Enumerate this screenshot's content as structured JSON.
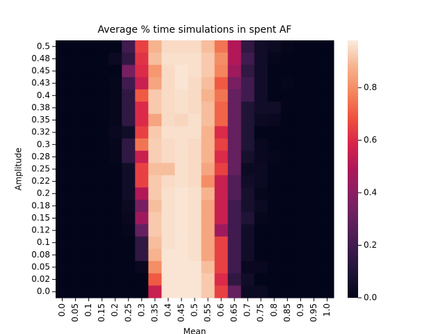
{
  "chart_data": {
    "type": "heatmap",
    "title": "Average % time simulations in spent AF",
    "x_label": "Mean",
    "y_label": "Amplitude",
    "x_categories": [
      "0.0",
      "0.05",
      "0.1",
      "0.15",
      "0.2",
      "0.25",
      "0.3",
      "0.35",
      "0.4",
      "0.45",
      "0.5",
      "0.55",
      "0.6",
      "0.65",
      "0.7",
      "0.75",
      "0.8",
      "0.85",
      "0.9",
      "0.95",
      "1.0"
    ],
    "y_categories": [
      "0.5",
      "0.48",
      "0.45",
      "0.43",
      "0.4",
      "0.38",
      "0.35",
      "0.32",
      "0.3",
      "0.28",
      "0.25",
      "0.22",
      "0.2",
      "0.18",
      "0.15",
      "0.12",
      "0.1",
      "0.08",
      "0.05",
      "0.02",
      "0.0"
    ],
    "values": [
      [
        0,
        0,
        0,
        0,
        0,
        0.2,
        0.65,
        0.88,
        0.95,
        0.95,
        0.95,
        0.9,
        0.75,
        0.5,
        0.15,
        0.05,
        0.03,
        0.01,
        0,
        0,
        0
      ],
      [
        0,
        0,
        0,
        0,
        0.03,
        0.15,
        0.62,
        0.9,
        0.96,
        0.96,
        0.96,
        0.92,
        0.8,
        0.5,
        0.2,
        0.05,
        0.01,
        0,
        0,
        0,
        0
      ],
      [
        0,
        0,
        0,
        0,
        0,
        0.35,
        0.6,
        0.82,
        0.95,
        0.97,
        0.96,
        0.92,
        0.78,
        0.45,
        0.15,
        0.05,
        0,
        0,
        0,
        0,
        0
      ],
      [
        0,
        0,
        0,
        0,
        0.01,
        0.2,
        0.55,
        0.85,
        0.95,
        0.97,
        0.95,
        0.9,
        0.7,
        0.35,
        0.2,
        0.05,
        0,
        0.01,
        0,
        0,
        0
      ],
      [
        0,
        0,
        0,
        0,
        0.01,
        0.15,
        0.7,
        0.92,
        0.95,
        0.96,
        0.95,
        0.88,
        0.75,
        0.3,
        0.2,
        0.05,
        0,
        0,
        0,
        0,
        0
      ],
      [
        0,
        0,
        0,
        0,
        0.01,
        0.15,
        0.6,
        0.92,
        0.95,
        0.96,
        0.95,
        0.9,
        0.72,
        0.3,
        0.1,
        0.05,
        0.05,
        0,
        0,
        0,
        0
      ],
      [
        0,
        0,
        0,
        0,
        0.01,
        0.15,
        0.6,
        0.85,
        0.95,
        0.94,
        0.96,
        0.9,
        0.72,
        0.3,
        0.1,
        0.03,
        0.02,
        0,
        0,
        0,
        0
      ],
      [
        0,
        0,
        0,
        0,
        0.02,
        0.05,
        0.65,
        0.92,
        0.96,
        0.96,
        0.96,
        0.88,
        0.6,
        0.3,
        0.1,
        0,
        0,
        0,
        0,
        0,
        0
      ],
      [
        0,
        0,
        0,
        0,
        0.01,
        0.15,
        0.75,
        0.93,
        0.95,
        0.96,
        0.95,
        0.88,
        0.65,
        0.3,
        0.1,
        0.02,
        0,
        0,
        0,
        0,
        0
      ],
      [
        0,
        0,
        0,
        0,
        0.01,
        0.15,
        0.55,
        0.93,
        0.95,
        0.96,
        0.95,
        0.88,
        0.6,
        0.3,
        0.07,
        0.02,
        0.01,
        0,
        0,
        0,
        0
      ],
      [
        0,
        0,
        0,
        0,
        0,
        0.05,
        0.65,
        0.9,
        0.9,
        0.96,
        0.95,
        0.85,
        0.65,
        0.3,
        0.03,
        0.03,
        0,
        0,
        0,
        0,
        0
      ],
      [
        0,
        0,
        0,
        0,
        0,
        0.05,
        0.65,
        0.92,
        0.95,
        0.96,
        0.95,
        0.8,
        0.55,
        0.25,
        0.05,
        0.03,
        0,
        0,
        0,
        0,
        0
      ],
      [
        0,
        0,
        0,
        0,
        0,
        0.05,
        0.5,
        0.92,
        0.96,
        0.97,
        0.96,
        0.88,
        0.55,
        0.25,
        0.07,
        0.01,
        0,
        0,
        0,
        0,
        0
      ],
      [
        0,
        0,
        0,
        0,
        0,
        0.03,
        0.35,
        0.9,
        0.96,
        0.97,
        0.96,
        0.85,
        0.55,
        0.2,
        0.07,
        0.03,
        0,
        0,
        0,
        0,
        0
      ],
      [
        0,
        0,
        0,
        0,
        0,
        0.02,
        0.45,
        0.92,
        0.96,
        0.97,
        0.96,
        0.85,
        0.55,
        0.2,
        0.1,
        0.01,
        0,
        0,
        0,
        0,
        0
      ],
      [
        0,
        0,
        0,
        0,
        0,
        0.01,
        0.3,
        0.92,
        0.96,
        0.97,
        0.96,
        0.85,
        0.45,
        0.2,
        0.05,
        0,
        0,
        0,
        0,
        0,
        0
      ],
      [
        0,
        0,
        0,
        0,
        0,
        0,
        0.15,
        0.9,
        0.96,
        0.97,
        0.96,
        0.85,
        0.65,
        0.2,
        0.05,
        0,
        0,
        0,
        0,
        0,
        0
      ],
      [
        0,
        0,
        0,
        0,
        0,
        0,
        0.15,
        0.88,
        0.97,
        0.97,
        0.96,
        0.85,
        0.65,
        0.2,
        0.05,
        0,
        0,
        0,
        0,
        0,
        0
      ],
      [
        0,
        0,
        0,
        0,
        0,
        0,
        0.02,
        0.8,
        0.97,
        0.97,
        0.97,
        0.9,
        0.65,
        0.2,
        0.02,
        0.02,
        0,
        0,
        0,
        0,
        0
      ],
      [
        0,
        0,
        0,
        0,
        0,
        0,
        0,
        0.7,
        0.97,
        0.97,
        0.97,
        0.92,
        0.6,
        0.15,
        0.05,
        0,
        0,
        0,
        0,
        0,
        0
      ],
      [
        0,
        0,
        0,
        0,
        0,
        0,
        0,
        0.55,
        0.97,
        0.97,
        0.97,
        0.92,
        0.65,
        0.3,
        0.03,
        0.03,
        0,
        0,
        0,
        0,
        0
      ]
    ],
    "colormap": "rocket",
    "colorbar_lim": [
      0,
      0.98
    ],
    "colorbar_ticks": [
      {
        "value": 0,
        "label": "0.0"
      },
      0.2,
      0.4,
      0.6,
      0.8
    ]
  }
}
